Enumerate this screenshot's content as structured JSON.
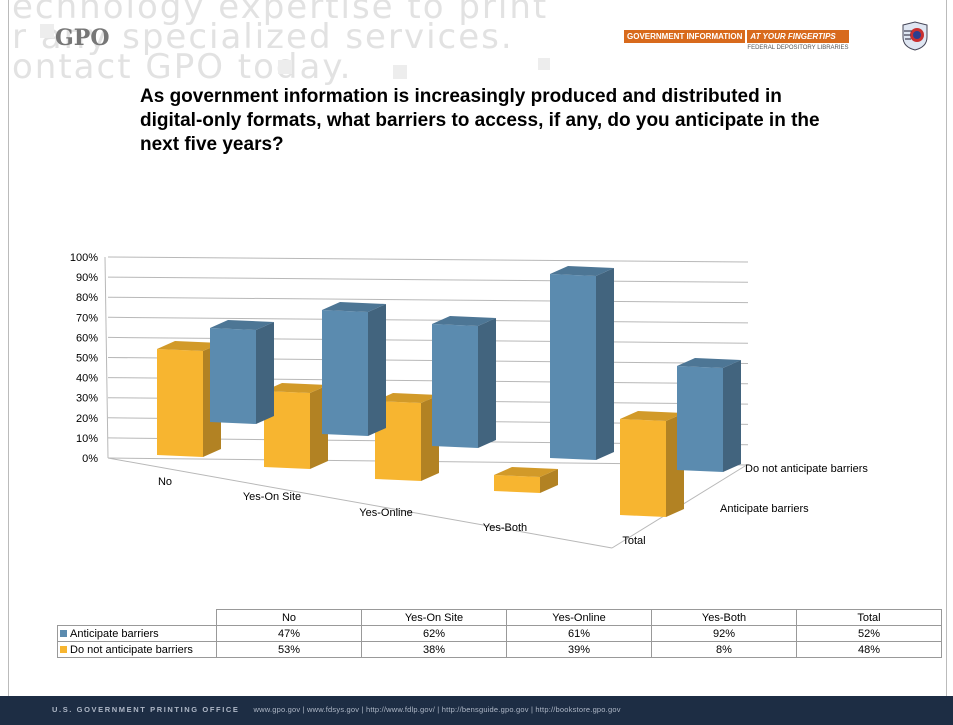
{
  "header": {
    "bg_text": "echnology expertise to print\nr any specialized services.\nontact GPO today.",
    "logo": "GPO",
    "badge_left": "GOVERNMENT INFORMATION",
    "badge_right": "AT YOUR FINGERTIPS",
    "badge_sub": "FEDERAL DEPOSITORY LIBRARIES"
  },
  "question": "As government information is increasingly produced and distributed in digital-only formats, what barriers to access, if any, do you anticipate in the next five years?",
  "chart_data": {
    "type": "bar",
    "categories": [
      "No",
      "Yes-On Site",
      "Yes-Online",
      "Yes-Both",
      "Total"
    ],
    "series": [
      {
        "name": "Anticipate barriers",
        "values": [
          47,
          62,
          61,
          92,
          52
        ],
        "color": "#5b8baf"
      },
      {
        "name": "Do not anticipate barriers",
        "values": [
          53,
          38,
          39,
          8,
          48
        ],
        "color": "#f7b530"
      }
    ],
    "y_ticks": [
      "0%",
      "10%",
      "20%",
      "30%",
      "40%",
      "50%",
      "60%",
      "70%",
      "80%",
      "90%",
      "100%"
    ],
    "ylim": [
      0,
      100
    ],
    "grid": true,
    "data_table": {
      "headers": [
        "No",
        "Yes-On Site",
        "Yes-Online",
        "Yes-Both",
        "Total"
      ],
      "rows": [
        {
          "label": "Anticipate barriers",
          "values": [
            "47%",
            "62%",
            "61%",
            "92%",
            "52%"
          ]
        },
        {
          "label": "Do not anticipate barriers",
          "values": [
            "53%",
            "38%",
            "39%",
            "8%",
            "48%"
          ]
        }
      ]
    }
  },
  "footer": {
    "org": "U.S. GOVERNMENT PRINTING OFFICE",
    "links": "www.gpo.gov  |  www.fdsys.gov  |  http://www.fdlp.gov/  |  http://bensguide.gpo.gov  |  http://bookstore.gpo.gov"
  }
}
